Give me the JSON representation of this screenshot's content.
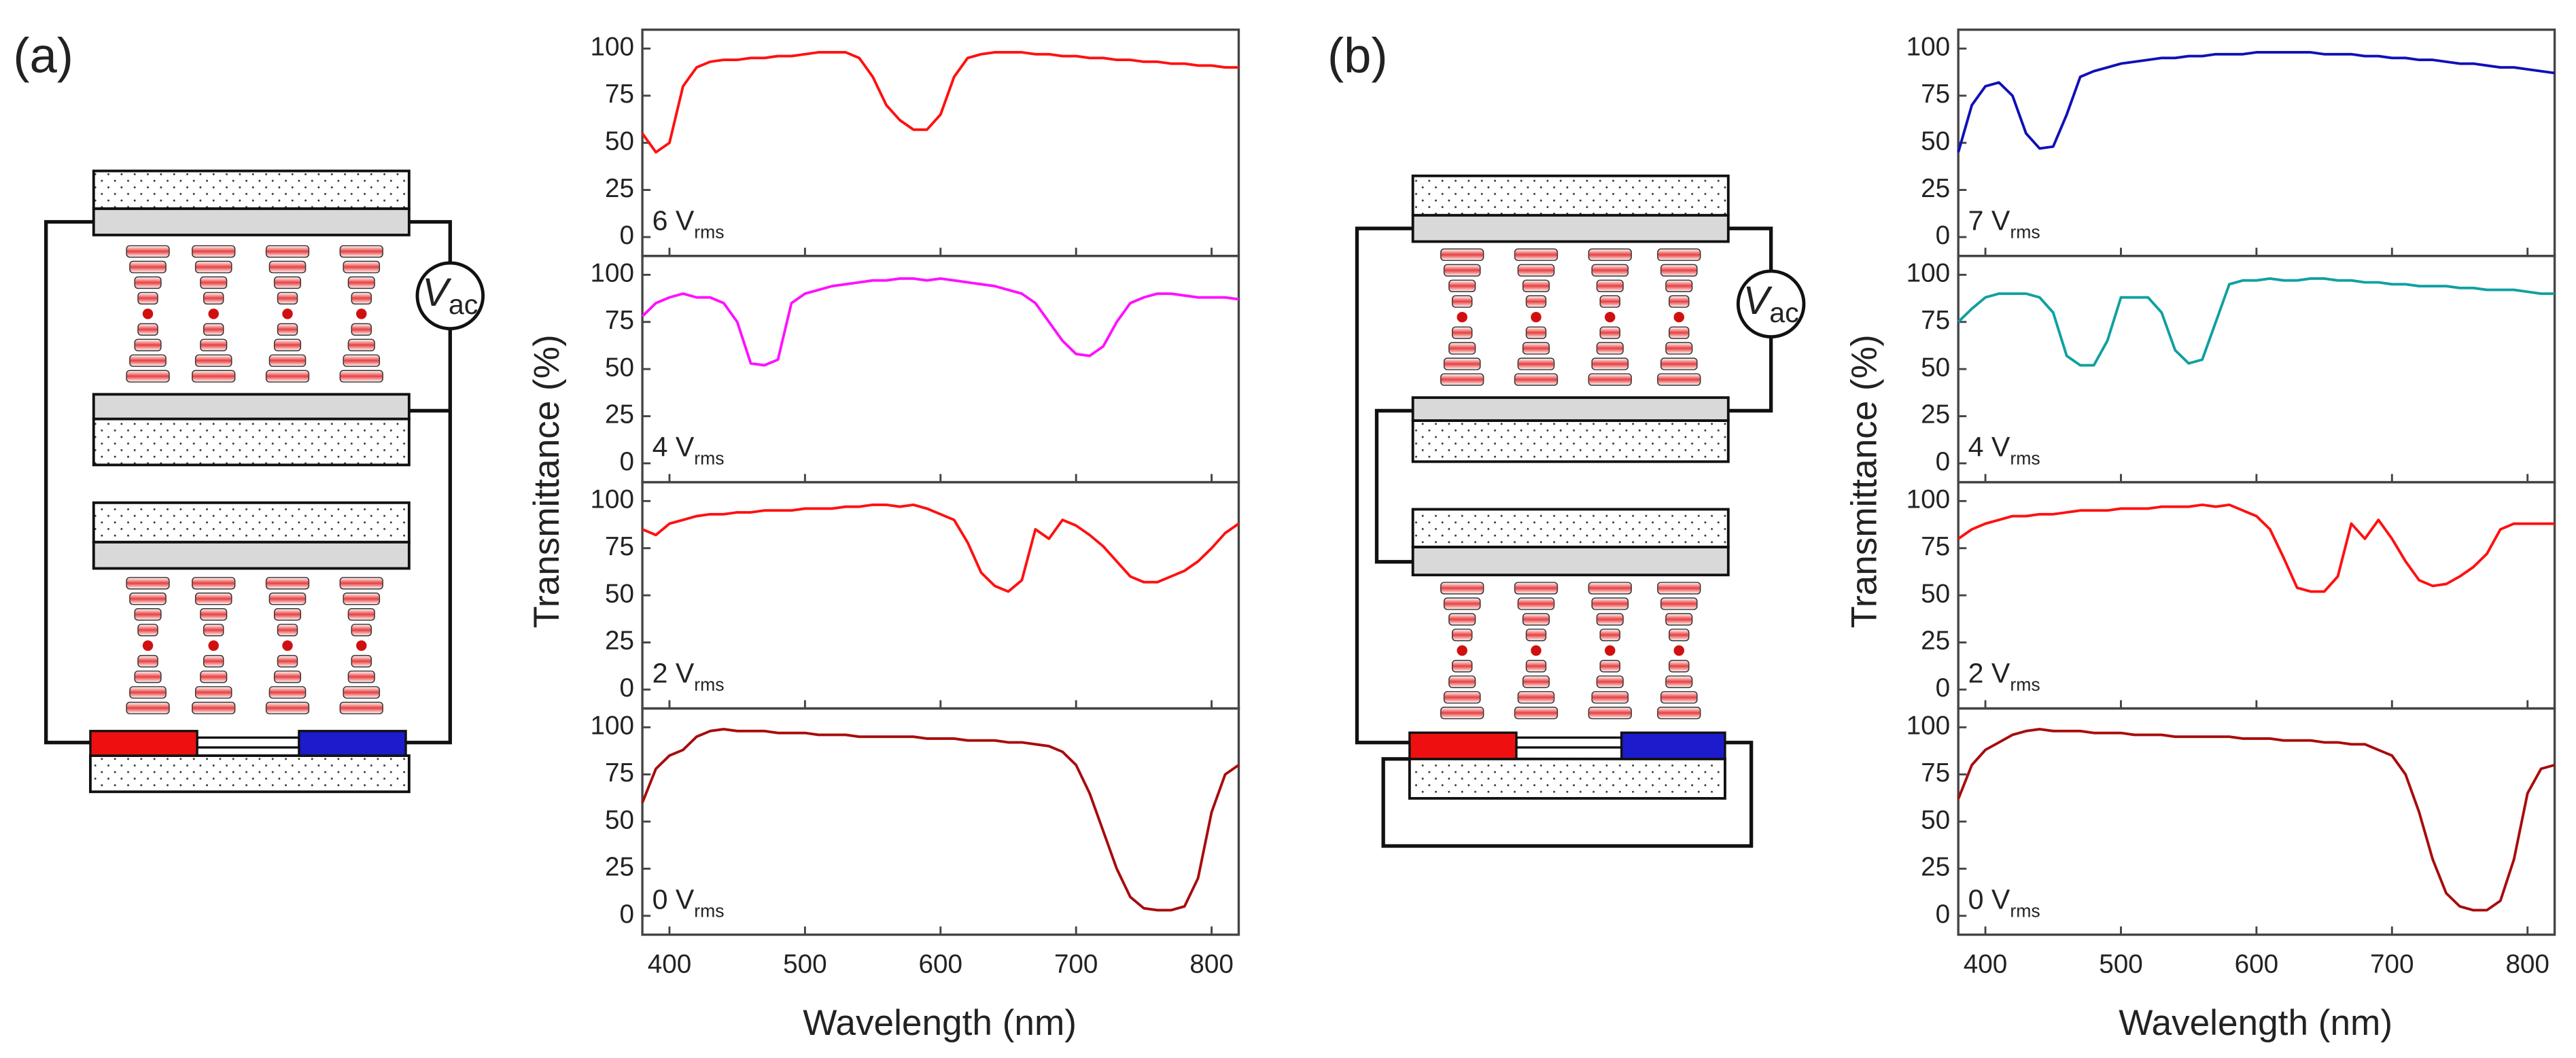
{
  "panels": [
    {
      "label": "(a)",
      "source": "V",
      "source_sub": "ac",
      "y_label": "Transmittance (%)",
      "x_label": "Wavelength (nm)"
    },
    {
      "label": "(b)",
      "source": "V",
      "source_sub": "ac",
      "y_label": "Transmittance (%)",
      "x_label": "Wavelength (nm)"
    }
  ],
  "chart_data": [
    {
      "type": "line",
      "annotation": "6 V",
      "annotation_sub": "rms",
      "color": "#ff1010",
      "x": [
        380,
        390,
        400,
        410,
        420,
        430,
        440,
        450,
        460,
        470,
        480,
        490,
        500,
        510,
        520,
        530,
        540,
        550,
        560,
        570,
        580,
        590,
        600,
        610,
        620,
        630,
        640,
        650,
        660,
        670,
        680,
        690,
        700,
        710,
        720,
        730,
        740,
        750,
        760,
        770,
        780,
        790,
        800,
        810,
        820
      ],
      "values": [
        55,
        45,
        50,
        80,
        90,
        93,
        94,
        94,
        95,
        95,
        96,
        96,
        97,
        98,
        98,
        98,
        95,
        85,
        70,
        62,
        57,
        57,
        65,
        85,
        95,
        97,
        98,
        98,
        98,
        97,
        97,
        96,
        96,
        95,
        95,
        94,
        94,
        93,
        93,
        92,
        92,
        91,
        91,
        90,
        90
      ],
      "xlim": [
        380,
        820
      ],
      "xticks": [
        400,
        500,
        600,
        700,
        800
      ],
      "ylim": [
        -10,
        110
      ],
      "yticks": [
        0,
        25,
        50,
        75,
        100
      ]
    },
    {
      "type": "line",
      "annotation": "4 V",
      "annotation_sub": "rms",
      "color": "#ff10ff",
      "x": [
        380,
        390,
        400,
        410,
        420,
        430,
        440,
        450,
        460,
        470,
        480,
        490,
        500,
        510,
        520,
        530,
        540,
        550,
        560,
        570,
        580,
        590,
        600,
        610,
        620,
        630,
        640,
        650,
        660,
        670,
        680,
        690,
        700,
        710,
        720,
        730,
        740,
        750,
        760,
        770,
        780,
        790,
        800,
        810,
        820
      ],
      "values": [
        78,
        85,
        88,
        90,
        88,
        88,
        85,
        75,
        53,
        52,
        55,
        85,
        90,
        92,
        94,
        95,
        96,
        97,
        97,
        98,
        98,
        97,
        98,
        97,
        96,
        95,
        94,
        92,
        90,
        85,
        75,
        65,
        58,
        57,
        62,
        75,
        85,
        88,
        90,
        90,
        89,
        88,
        88,
        88,
        87
      ],
      "xlim": [
        380,
        820
      ],
      "xticks": [
        400,
        500,
        600,
        700,
        800
      ],
      "ylim": [
        -10,
        110
      ],
      "yticks": [
        0,
        25,
        50,
        75,
        100
      ]
    },
    {
      "type": "line",
      "annotation": "2 V",
      "annotation_sub": "rms",
      "color": "#ff1010",
      "x": [
        380,
        390,
        400,
        410,
        420,
        430,
        440,
        450,
        460,
        470,
        480,
        490,
        500,
        510,
        520,
        530,
        540,
        550,
        560,
        570,
        580,
        590,
        600,
        610,
        620,
        630,
        640,
        650,
        660,
        670,
        680,
        690,
        700,
        710,
        720,
        730,
        740,
        750,
        760,
        770,
        780,
        790,
        800,
        810,
        820
      ],
      "values": [
        85,
        82,
        88,
        90,
        92,
        93,
        93,
        94,
        94,
        95,
        95,
        95,
        96,
        96,
        96,
        97,
        97,
        98,
        98,
        97,
        98,
        96,
        93,
        90,
        78,
        62,
        55,
        52,
        58,
        85,
        80,
        90,
        87,
        82,
        76,
        68,
        60,
        57,
        57,
        60,
        63,
        68,
        75,
        83,
        88
      ],
      "xlim": [
        380,
        820
      ],
      "xticks": [
        400,
        500,
        600,
        700,
        800
      ],
      "ylim": [
        -10,
        110
      ],
      "yticks": [
        0,
        25,
        50,
        75,
        100
      ]
    },
    {
      "type": "line",
      "annotation": "0 V",
      "annotation_sub": "rms",
      "color": "#a80c0c",
      "x": [
        380,
        390,
        400,
        410,
        420,
        430,
        440,
        450,
        460,
        470,
        480,
        490,
        500,
        510,
        520,
        530,
        540,
        550,
        560,
        570,
        580,
        590,
        600,
        610,
        620,
        630,
        640,
        650,
        660,
        670,
        680,
        690,
        700,
        710,
        720,
        730,
        740,
        750,
        760,
        770,
        780,
        790,
        800,
        810,
        820
      ],
      "values": [
        60,
        78,
        85,
        88,
        95,
        98,
        99,
        98,
        98,
        98,
        97,
        97,
        97,
        96,
        96,
        96,
        95,
        95,
        95,
        95,
        95,
        94,
        94,
        94,
        93,
        93,
        93,
        92,
        92,
        91,
        90,
        87,
        80,
        65,
        45,
        25,
        10,
        4,
        3,
        3,
        5,
        20,
        55,
        75,
        80
      ],
      "xlim": [
        380,
        820
      ],
      "xticks": [
        400,
        500,
        600,
        700,
        800
      ],
      "ylim": [
        -10,
        110
      ],
      "yticks": [
        0,
        25,
        50,
        75,
        100
      ]
    },
    {
      "type": "line",
      "annotation": "7 V",
      "annotation_sub": "rms",
      "color": "#1010b8",
      "x": [
        380,
        390,
        400,
        410,
        420,
        430,
        440,
        450,
        460,
        470,
        480,
        490,
        500,
        510,
        520,
        530,
        540,
        550,
        560,
        570,
        580,
        590,
        600,
        610,
        620,
        630,
        640,
        650,
        660,
        670,
        680,
        690,
        700,
        710,
        720,
        730,
        740,
        750,
        760,
        770,
        780,
        790,
        800,
        810,
        820
      ],
      "values": [
        45,
        70,
        80,
        82,
        75,
        55,
        47,
        48,
        65,
        85,
        88,
        90,
        92,
        93,
        94,
        95,
        95,
        96,
        96,
        97,
        97,
        97,
        98,
        98,
        98,
        98,
        98,
        97,
        97,
        97,
        96,
        96,
        95,
        95,
        94,
        94,
        93,
        92,
        92,
        91,
        90,
        90,
        89,
        88,
        87
      ],
      "xlim": [
        380,
        820
      ],
      "xticks": [
        400,
        500,
        600,
        700,
        800
      ],
      "ylim": [
        -10,
        110
      ],
      "yticks": [
        0,
        25,
        50,
        75,
        100
      ]
    },
    {
      "type": "line",
      "annotation": "4 V",
      "annotation_sub": "rms",
      "color": "#10a0a0",
      "x": [
        380,
        390,
        400,
        410,
        420,
        430,
        440,
        450,
        460,
        470,
        480,
        490,
        500,
        510,
        520,
        530,
        540,
        550,
        560,
        570,
        580,
        590,
        600,
        610,
        620,
        630,
        640,
        650,
        660,
        670,
        680,
        690,
        700,
        710,
        720,
        730,
        740,
        750,
        760,
        770,
        780,
        790,
        800,
        810,
        820
      ],
      "values": [
        75,
        82,
        88,
        90,
        90,
        90,
        88,
        80,
        57,
        52,
        52,
        65,
        88,
        88,
        88,
        80,
        60,
        53,
        55,
        75,
        95,
        97,
        97,
        98,
        97,
        97,
        98,
        98,
        97,
        97,
        96,
        96,
        95,
        95,
        94,
        94,
        94,
        93,
        93,
        92,
        92,
        92,
        91,
        90,
        90
      ],
      "xlim": [
        380,
        820
      ],
      "xticks": [
        400,
        500,
        600,
        700,
        800
      ],
      "ylim": [
        -10,
        110
      ],
      "yticks": [
        0,
        25,
        50,
        75,
        100
      ]
    },
    {
      "type": "line",
      "annotation": "2 V",
      "annotation_sub": "rms",
      "color": "#ff1010",
      "x": [
        380,
        390,
        400,
        410,
        420,
        430,
        440,
        450,
        460,
        470,
        480,
        490,
        500,
        510,
        520,
        530,
        540,
        550,
        560,
        570,
        580,
        590,
        600,
        610,
        620,
        630,
        640,
        650,
        660,
        670,
        680,
        690,
        700,
        710,
        720,
        730,
        740,
        750,
        760,
        770,
        780,
        790,
        800,
        810,
        820
      ],
      "values": [
        80,
        85,
        88,
        90,
        92,
        92,
        93,
        93,
        94,
        95,
        95,
        95,
        96,
        96,
        96,
        97,
        97,
        97,
        98,
        97,
        98,
        95,
        92,
        85,
        70,
        54,
        52,
        52,
        60,
        88,
        80,
        90,
        80,
        68,
        58,
        55,
        56,
        60,
        65,
        72,
        85,
        88,
        88,
        88,
        88
      ],
      "xlim": [
        380,
        820
      ],
      "xticks": [
        400,
        500,
        600,
        700,
        800
      ],
      "ylim": [
        -10,
        110
      ],
      "yticks": [
        0,
        25,
        50,
        75,
        100
      ]
    },
    {
      "type": "line",
      "annotation": "0 V",
      "annotation_sub": "rms",
      "color": "#a80c0c",
      "x": [
        380,
        390,
        400,
        410,
        420,
        430,
        440,
        450,
        460,
        470,
        480,
        490,
        500,
        510,
        520,
        530,
        540,
        550,
        560,
        570,
        580,
        590,
        600,
        610,
        620,
        630,
        640,
        650,
        660,
        670,
        680,
        690,
        700,
        710,
        720,
        730,
        740,
        750,
        760,
        770,
        780,
        790,
        800,
        810,
        820
      ],
      "values": [
        62,
        80,
        88,
        92,
        96,
        98,
        99,
        98,
        98,
        98,
        97,
        97,
        97,
        96,
        96,
        96,
        95,
        95,
        95,
        95,
        95,
        94,
        94,
        94,
        93,
        93,
        93,
        92,
        92,
        91,
        91,
        88,
        85,
        75,
        55,
        30,
        12,
        5,
        3,
        3,
        8,
        30,
        65,
        78,
        80
      ],
      "xlim": [
        380,
        820
      ],
      "xticks": [
        400,
        500,
        600,
        700,
        800
      ],
      "ylim": [
        -10,
        110
      ],
      "yticks": [
        0,
        25,
        50,
        75,
        100
      ]
    }
  ]
}
